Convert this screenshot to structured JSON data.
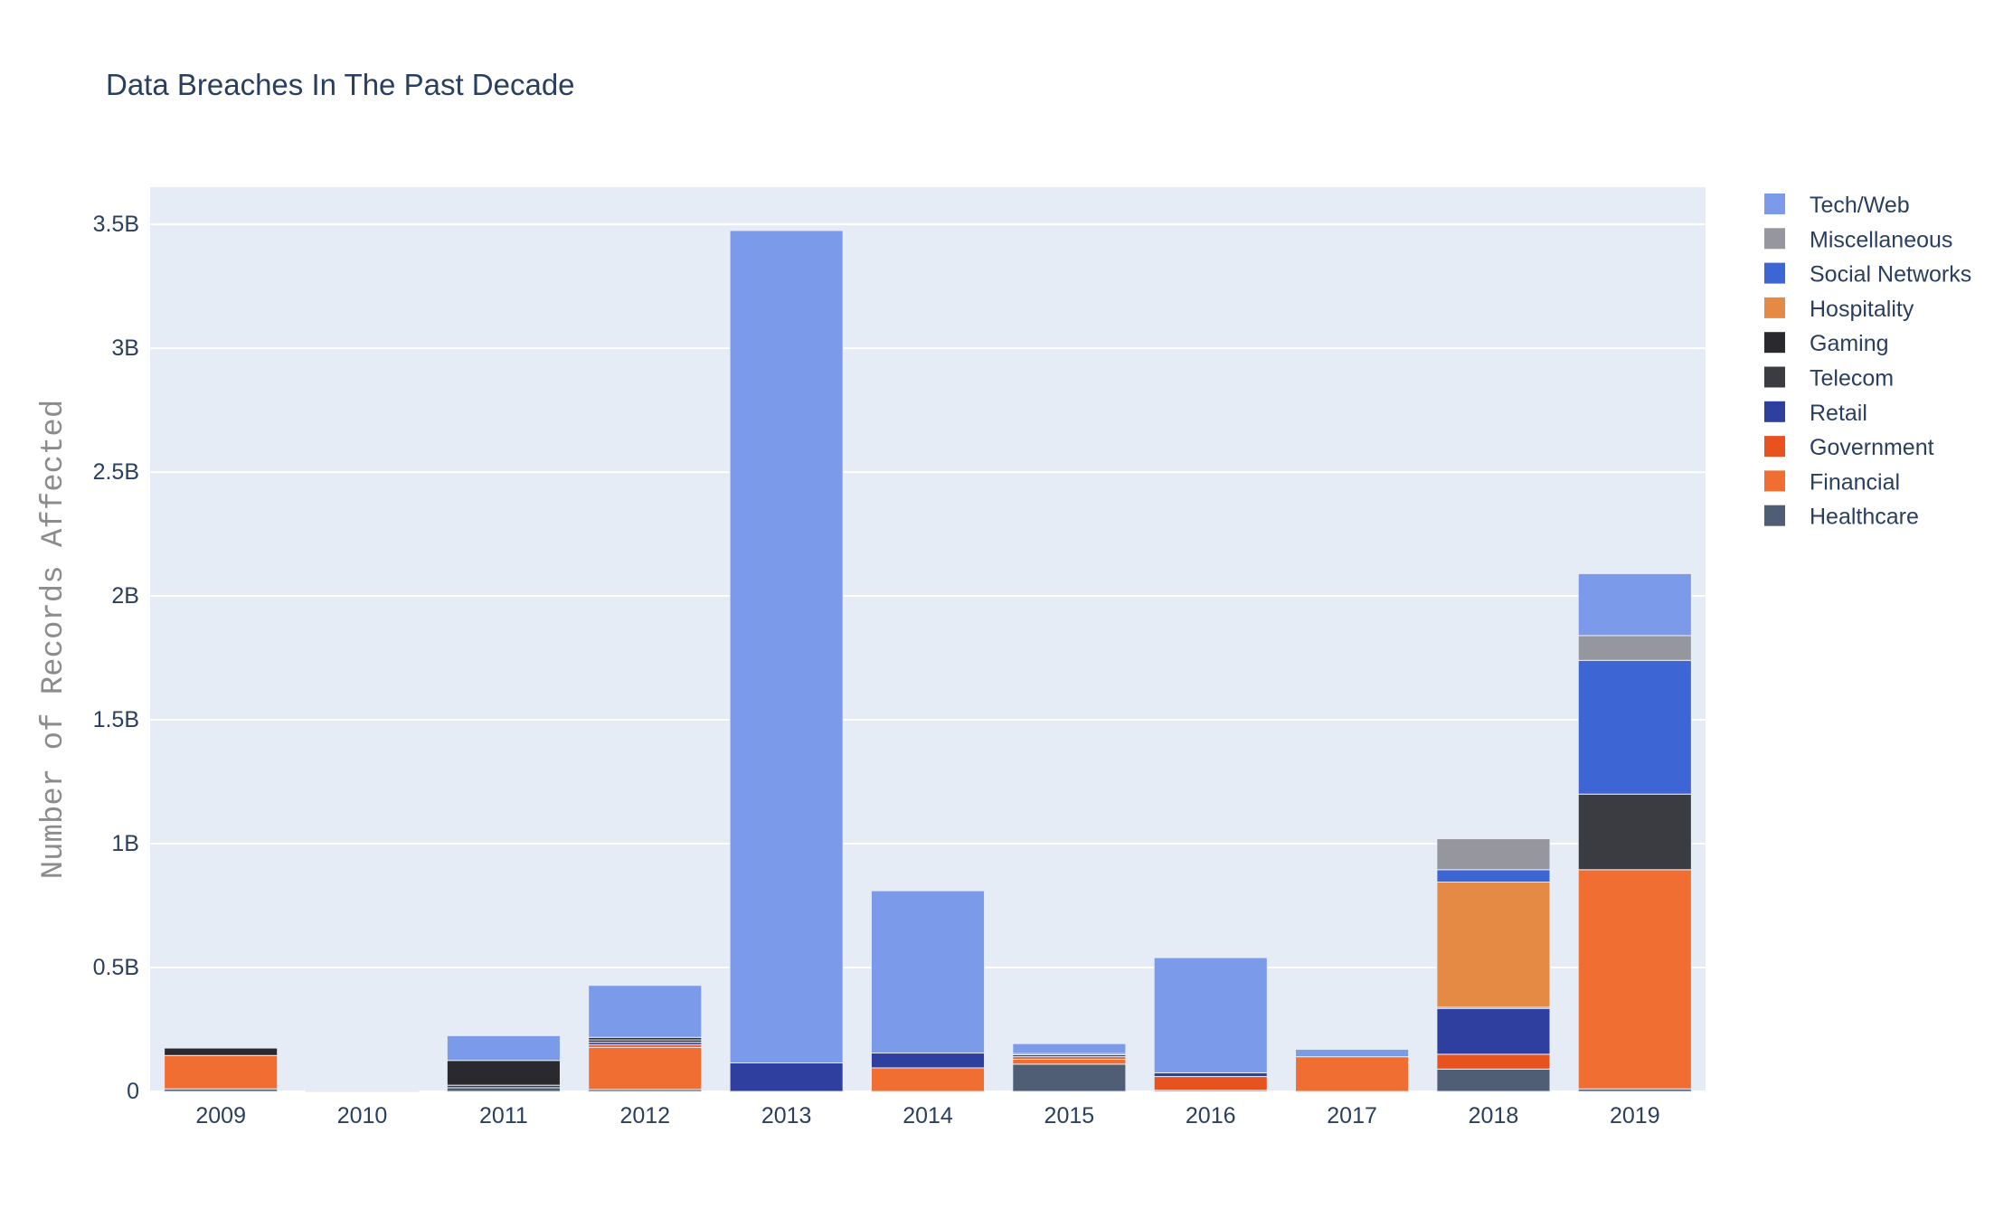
{
  "chart_data": {
    "type": "bar",
    "stacked": true,
    "title": "Data Breaches In The Past Decade",
    "xlabel": "",
    "ylabel": "Number of Records Affected",
    "ylim": [
      0,
      3650000000
    ],
    "yticks": [
      0,
      500000000,
      1000000000,
      1500000000,
      2000000000,
      2500000000,
      3000000000,
      3500000000
    ],
    "ytick_labels": [
      "0",
      "0.5B",
      "1B",
      "1.5B",
      "2B",
      "2.5B",
      "3B",
      "3.5B"
    ],
    "categories": [
      "2009",
      "2010",
      "2011",
      "2012",
      "2013",
      "2014",
      "2015",
      "2016",
      "2017",
      "2018",
      "2019"
    ],
    "grid": true,
    "legend_position": "top-right",
    "series": [
      {
        "name": "Healthcare",
        "color": "#4f5d75",
        "values": [
          10000000,
          3000000,
          15000000,
          8000000,
          0,
          0,
          110000000,
          5000000,
          0,
          90000000,
          10000000
        ]
      },
      {
        "name": "Financial",
        "color": "#f06e31",
        "values": [
          135000000,
          0,
          0,
          170000000,
          0,
          95000000,
          20000000,
          0,
          140000000,
          0,
          885000000
        ]
      },
      {
        "name": "Government",
        "color": "#e8521e",
        "values": [
          0,
          0,
          0,
          10000000,
          0,
          0,
          10000000,
          55000000,
          0,
          60000000,
          0
        ]
      },
      {
        "name": "Retail",
        "color": "#2e3fa0",
        "values": [
          0,
          0,
          0,
          10000000,
          115000000,
          60000000,
          8000000,
          15000000,
          0,
          185000000,
          0
        ]
      },
      {
        "name": "Telecom",
        "color": "#3b3c42",
        "values": [
          0,
          0,
          10000000,
          10000000,
          0,
          0,
          5000000,
          0,
          0,
          5000000,
          305000000
        ]
      },
      {
        "name": "Gaming",
        "color": "#2a2a2e",
        "values": [
          30000000,
          0,
          100000000,
          10000000,
          0,
          0,
          0,
          0,
          0,
          0,
          0
        ]
      },
      {
        "name": "Hospitality",
        "color": "#e48a44",
        "values": [
          0,
          0,
          0,
          0,
          0,
          0,
          0,
          0,
          0,
          505000000,
          0
        ]
      },
      {
        "name": "Social Networks",
        "color": "#3d66d4",
        "values": [
          0,
          0,
          0,
          0,
          0,
          0,
          0,
          0,
          0,
          50000000,
          540000000
        ]
      },
      {
        "name": "Miscellaneous",
        "color": "#95969e",
        "values": [
          0,
          0,
          0,
          0,
          0,
          0,
          0,
          0,
          0,
          125000000,
          100000000
        ]
      },
      {
        "name": "Tech/Web",
        "color": "#7b9aea",
        "values": [
          0,
          0,
          100000000,
          210000000,
          3360000000,
          655000000,
          40000000,
          465000000,
          30000000,
          0,
          250000000
        ]
      }
    ],
    "legend_order": [
      "Tech/Web",
      "Miscellaneous",
      "Social Networks",
      "Hospitality",
      "Gaming",
      "Telecom",
      "Retail",
      "Government",
      "Financial",
      "Healthcare"
    ]
  },
  "colors": {
    "plot_background": "#e5ecf6",
    "gridline": "#ffffff",
    "text": "#2a3f5f",
    "axis_title": "#8c8c8c"
  }
}
